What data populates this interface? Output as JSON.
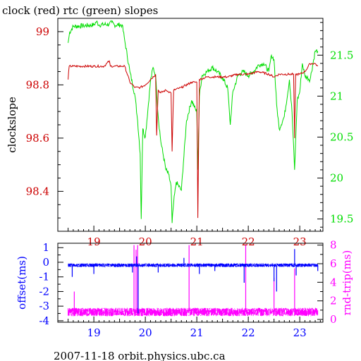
{
  "title": "clock (red) rtc (green) slopes",
  "footer": "2007-11-18 orbit.physics.ubc.ca",
  "colors": {
    "clock": "#cc0000",
    "rtc": "#00dd00",
    "offset": "#0000ff",
    "rtt": "#ff00ff",
    "axis": "#000000",
    "background": "#ffffff"
  },
  "chart_data": [
    {
      "type": "line",
      "ylabel": "clockslope",
      "y2label": "",
      "xlim": [
        18.3,
        23.45
      ],
      "ylim": [
        98.25,
        99.05
      ],
      "y2lim": [
        19.35,
        21.95
      ],
      "xticks": [
        "19",
        "20",
        "21",
        "22",
        "23"
      ],
      "yticks": [
        "98.4",
        "98.6",
        "98.8",
        "99"
      ],
      "y2ticks": [
        "19.5",
        "20",
        "20.5",
        "21",
        "21.5"
      ],
      "series": [
        {
          "name": "clock (red)",
          "axis": "left",
          "x": [
            18.5,
            18.52,
            18.6,
            18.8,
            19.0,
            19.2,
            19.3,
            19.32,
            19.4,
            19.55,
            19.6,
            19.7,
            19.8,
            19.9,
            20.0,
            20.1,
            20.2,
            20.22,
            20.25,
            20.3,
            20.4,
            20.5,
            20.52,
            20.55,
            20.7,
            20.9,
            21.0,
            21.02,
            21.05,
            21.2,
            21.4,
            21.6,
            21.8,
            22.0,
            22.2,
            22.4,
            22.5,
            22.6,
            22.8,
            22.88,
            22.9,
            22.92,
            23.0,
            23.1,
            23.2,
            23.3,
            23.35
          ],
          "y": [
            98.82,
            98.87,
            98.87,
            98.87,
            98.87,
            98.87,
            98.89,
            98.87,
            98.87,
            98.87,
            98.87,
            98.81,
            98.79,
            98.79,
            98.8,
            98.82,
            98.84,
            98.61,
            98.78,
            98.77,
            98.78,
            98.77,
            98.55,
            98.78,
            98.79,
            98.81,
            98.81,
            98.3,
            98.82,
            98.83,
            98.83,
            98.83,
            98.84,
            98.84,
            98.85,
            98.84,
            98.83,
            98.84,
            98.84,
            98.84,
            98.6,
            98.84,
            98.84,
            98.85,
            98.88,
            98.88,
            98.87
          ]
        },
        {
          "name": "rtc (green)",
          "axis": "right",
          "x": [
            18.5,
            18.53,
            18.6,
            18.8,
            19.0,
            19.05,
            19.1,
            19.3,
            19.35,
            19.4,
            19.55,
            19.6,
            19.7,
            19.8,
            19.85,
            19.9,
            19.92,
            19.95,
            20.0,
            20.1,
            20.15,
            20.2,
            20.25,
            20.3,
            20.4,
            20.45,
            20.5,
            20.52,
            20.55,
            20.6,
            20.7,
            20.8,
            20.9,
            21.0,
            21.02,
            21.05,
            21.1,
            21.2,
            21.3,
            21.4,
            21.5,
            21.6,
            21.65,
            21.7,
            21.8,
            21.9,
            22.0,
            22.1,
            22.2,
            22.3,
            22.4,
            22.45,
            22.5,
            22.55,
            22.6,
            22.7,
            22.8,
            22.85,
            22.9,
            22.95,
            23.0,
            23.05,
            23.1,
            23.2,
            23.3,
            23.35
          ],
          "y": [
            21.65,
            21.78,
            21.85,
            21.86,
            21.87,
            21.91,
            21.87,
            21.88,
            21.9,
            21.87,
            21.87,
            21.68,
            21.3,
            21.0,
            20.7,
            20.3,
            19.5,
            20.6,
            20.5,
            21.18,
            21.35,
            21.25,
            20.75,
            20.45,
            20.1,
            20.05,
            19.9,
            19.45,
            19.7,
            19.95,
            19.85,
            20.7,
            20.95,
            20.8,
            20.1,
            21.0,
            21.25,
            21.3,
            21.35,
            21.3,
            21.22,
            21.1,
            20.65,
            21.05,
            21.25,
            21.3,
            21.25,
            21.3,
            21.38,
            21.4,
            21.3,
            21.5,
            21.45,
            20.9,
            20.6,
            20.75,
            21.2,
            20.8,
            20.1,
            20.95,
            21.05,
            21.4,
            21.25,
            21.2,
            21.55,
            21.55
          ]
        }
      ]
    },
    {
      "type": "line",
      "ylabel": "offset(ms)",
      "y2label": "rnd-trip(ms)",
      "xlim": [
        18.3,
        23.45
      ],
      "ylim": [
        -4.1,
        1.3
      ],
      "y2lim": [
        -0.3,
        8.2
      ],
      "xticks": [
        "19",
        "20",
        "21",
        "22",
        "23"
      ],
      "yticks": [
        "1",
        "0",
        "-1",
        "-2",
        "-3",
        "-4"
      ],
      "y2ticks": [
        "0",
        "2",
        "4",
        "6",
        "8"
      ],
      "series": [
        {
          "name": "offset",
          "axis": "left",
          "baseline": -0.2,
          "noise": 0.25,
          "spikes": [
            [
              18.58,
              -1.0
            ],
            [
              19.0,
              -0.8
            ],
            [
              19.75,
              -0.7
            ],
            [
              19.83,
              0.4
            ],
            [
              19.86,
              -3.5
            ],
            [
              20.25,
              -0.7
            ],
            [
              20.75,
              0.3
            ],
            [
              20.95,
              -0.3
            ],
            [
              21.05,
              -0.8
            ],
            [
              21.35,
              -0.6
            ],
            [
              21.92,
              -1.4
            ],
            [
              22.5,
              -1.3
            ],
            [
              22.55,
              -2.0
            ],
            [
              22.9,
              0.9
            ],
            [
              22.93,
              -0.9
            ],
            [
              23.35,
              -0.6
            ]
          ]
        },
        {
          "name": "rnd-trip",
          "axis": "right",
          "baseline": 0.8,
          "noise": 0.9,
          "spikes": [
            [
              18.62,
              3.0
            ],
            [
              19.78,
              8.0
            ],
            [
              19.82,
              7.5
            ],
            [
              19.85,
              8.0
            ],
            [
              20.85,
              8.0
            ],
            [
              21.95,
              8.0
            ],
            [
              22.5,
              4.5
            ],
            [
              22.9,
              5.5
            ]
          ]
        }
      ]
    }
  ]
}
